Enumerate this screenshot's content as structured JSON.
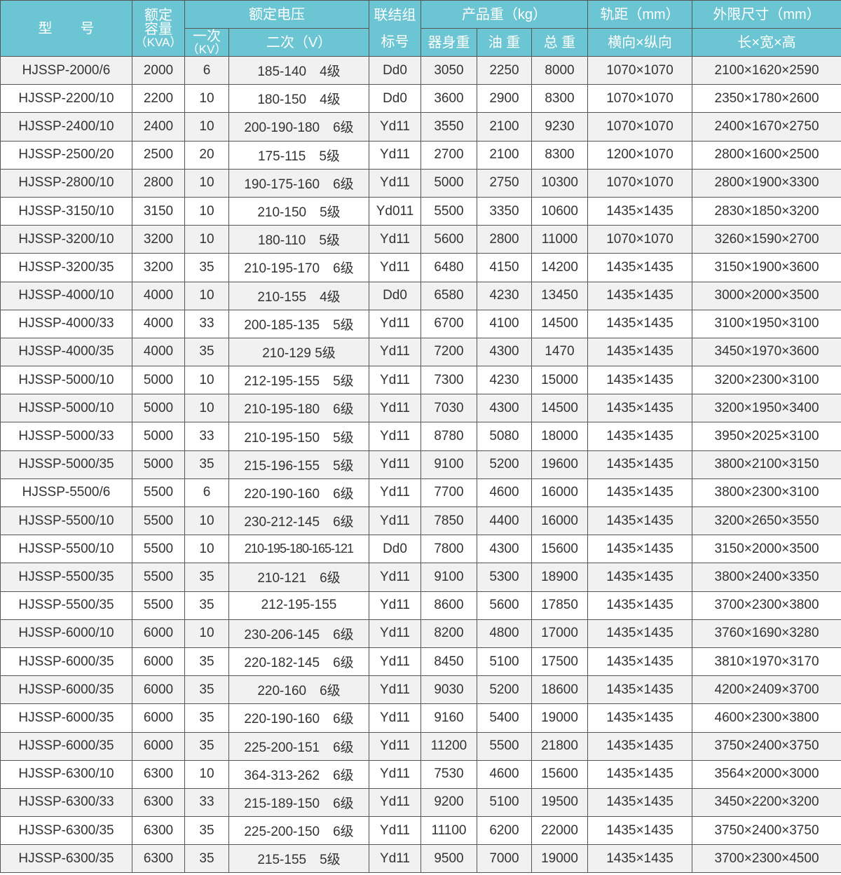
{
  "header": {
    "model": "型　　号",
    "capacity": [
      "额定",
      "容量",
      "（KVA）"
    ],
    "rated_voltage": "额定电压",
    "primary": [
      "一次",
      "（KV）"
    ],
    "secondary": "二次（V）",
    "connection": [
      "联结组",
      "标号"
    ],
    "weight": "产品重（kg）",
    "body_weight": "器身重",
    "oil_weight": "油 重",
    "total_weight": "总 重",
    "gauge": "轨距（mm）",
    "gauge_sub": "横向×纵向",
    "dimensions": "外限尺寸（mm）",
    "dimensions_sub": "长×宽×高"
  },
  "header_color": "#6cc5d3",
  "rows": [
    [
      "HJSSP-2000/6",
      "2000",
      "6",
      "185-140　4级",
      "Dd0",
      "3050",
      "2250",
      "8000",
      "1070×1070",
      "2100×1620×2590"
    ],
    [
      "HJSSP-2200/10",
      "2200",
      "10",
      "180-150　4级",
      "Dd0",
      "3600",
      "2900",
      "8300",
      "1070×1070",
      "2350×1780×2600"
    ],
    [
      "HJSSP-2400/10",
      "2400",
      "10",
      "200-190-180　6级",
      "Yd11",
      "3550",
      "2100",
      "9230",
      "1070×1070",
      "2400×1670×2750"
    ],
    [
      "HJSSP-2500/20",
      "2500",
      "20",
      "175-115　5级",
      "Yd11",
      "2700",
      "2100",
      "8300",
      "1200×1070",
      "2800×1600×2500"
    ],
    [
      "HJSSP-2800/10",
      "2800",
      "10",
      "190-175-160　6级",
      "Yd11",
      "5000",
      "2750",
      "10300",
      "1070×1070",
      "2800×1900×3300"
    ],
    [
      "HJSSP-3150/10",
      "3150",
      "10",
      "210-150　5级",
      "Yd011",
      "5500",
      "3350",
      "10600",
      "1435×1435",
      "2830×1850×3200"
    ],
    [
      "HJSSP-3200/10",
      "3200",
      "10",
      "180-110　5级",
      "Yd11",
      "5600",
      "2800",
      "11000",
      "1070×1070",
      "3260×1590×2700"
    ],
    [
      "HJSSP-3200/35",
      "3200",
      "35",
      "210-195-170　6级",
      "Yd11",
      "6480",
      "4150",
      "14200",
      "1435×1435",
      "3150×1900×3600"
    ],
    [
      "HJSSP-4000/10",
      "4000",
      "10",
      "210-155　4级",
      "Dd0",
      "6580",
      "4230",
      "13450",
      "1435×1435",
      "3000×2000×3500"
    ],
    [
      "HJSSP-4000/33",
      "4000",
      "33",
      "200-185-135　5级",
      "Yd11",
      "6700",
      "4100",
      "14500",
      "1435×1435",
      "3100×1950×3100"
    ],
    [
      "HJSSP-4000/35",
      "4000",
      "35",
      "210-129  5级",
      "Yd11",
      "7200",
      "4300",
      "1470",
      "1435×1435",
      "3450×1970×3600"
    ],
    [
      "HJSSP-5000/10",
      "5000",
      "10",
      "212-195-155　5级",
      "Yd11",
      "7300",
      "4230",
      "15000",
      "1435×1435",
      "3200×2300×3100"
    ],
    [
      "HJSSP-5000/10",
      "5000",
      "10",
      "210-195-180　6级",
      "Yd11",
      "7030",
      "4300",
      "14500",
      "1435×1435",
      "3200×1950×3400"
    ],
    [
      "HJSSP-5000/33",
      "5000",
      "33",
      "210-195-150　5级",
      "Yd11",
      "8780",
      "5080",
      "18000",
      "1435×1435",
      "3950×2025×3100"
    ],
    [
      "HJSSP-5000/35",
      "5000",
      "35",
      "215-196-155　5级",
      "Yd11",
      "9100",
      "5200",
      "19600",
      "1435×1435",
      "3800×2100×3150"
    ],
    [
      "HJSSP-5500/6",
      "5500",
      "6",
      "220-190-160　6级",
      "Yd11",
      "7700",
      "4600",
      "16000",
      "1435×1435",
      "3800×2300×3100"
    ],
    [
      "HJSSP-5500/10",
      "5500",
      "10",
      "230-212-145　6级",
      "Yd11",
      "7850",
      "4400",
      "16000",
      "1435×1435",
      "3200×2650×3550"
    ],
    [
      "HJSSP-5500/10",
      "5500",
      "10",
      "210-195-180-165-121",
      "Dd0",
      "7800",
      "4300",
      "15600",
      "1435×1435",
      "3150×2000×3500"
    ],
    [
      "HJSSP-5500/35",
      "5500",
      "35",
      "210-121　6级",
      "Yd11",
      "9100",
      "5300",
      "18900",
      "1435×1435",
      "3800×2400×3350"
    ],
    [
      "HJSSP-5500/35",
      "5500",
      "35",
      "212-195-155",
      "Yd11",
      "8600",
      "5600",
      "17850",
      "1435×1435",
      "3700×2300×3800"
    ],
    [
      "HJSSP-6000/10",
      "6000",
      "10",
      "230-206-145　6级",
      "Yd11",
      "8200",
      "4800",
      "17000",
      "1435×1435",
      "3760×1690×3280"
    ],
    [
      "HJSSP-6000/35",
      "6000",
      "35",
      "220-182-145　6级",
      "Yd11",
      "8450",
      "5100",
      "17500",
      "1435×1435",
      "3810×1970×3170"
    ],
    [
      "HJSSP-6000/35",
      "6000",
      "35",
      "220-160　6级",
      "Yd11",
      "9030",
      "5200",
      "18600",
      "1435×1435",
      "4200×2409×3700"
    ],
    [
      "HJSSP-6000/35",
      "6000",
      "35",
      "220-190-160　6级",
      "Yd11",
      "9160",
      "5400",
      "19000",
      "1435×1435",
      "4600×2300×3800"
    ],
    [
      "HJSSP-6000/35",
      "6000",
      "35",
      "225-200-151　6级",
      "Yd11",
      "11200",
      "5500",
      "21800",
      "1435×1435",
      "3750×2400×3750"
    ],
    [
      "HJSSP-6300/10",
      "6300",
      "10",
      "364-313-262　6级",
      "Yd11",
      "7530",
      "4600",
      "15600",
      "1435×1435",
      "3564×2000×3000"
    ],
    [
      "HJSSP-6300/33",
      "6300",
      "33",
      "215-189-150　6级",
      "Yd11",
      "9200",
      "5100",
      "19500",
      "1435×1435",
      "3450×2200×3200"
    ],
    [
      "HJSSP-6300/35",
      "6300",
      "35",
      "225-200-150　6级",
      "Yd11",
      "11100",
      "6200",
      "22000",
      "1435×1435",
      "3750×2400×3750"
    ],
    [
      "HJSSP-6300/35",
      "6300",
      "35",
      "215-155　5级",
      "Yd11",
      "9500",
      "7000",
      "19000",
      "1435×1435",
      "3700×2300×4500"
    ]
  ]
}
